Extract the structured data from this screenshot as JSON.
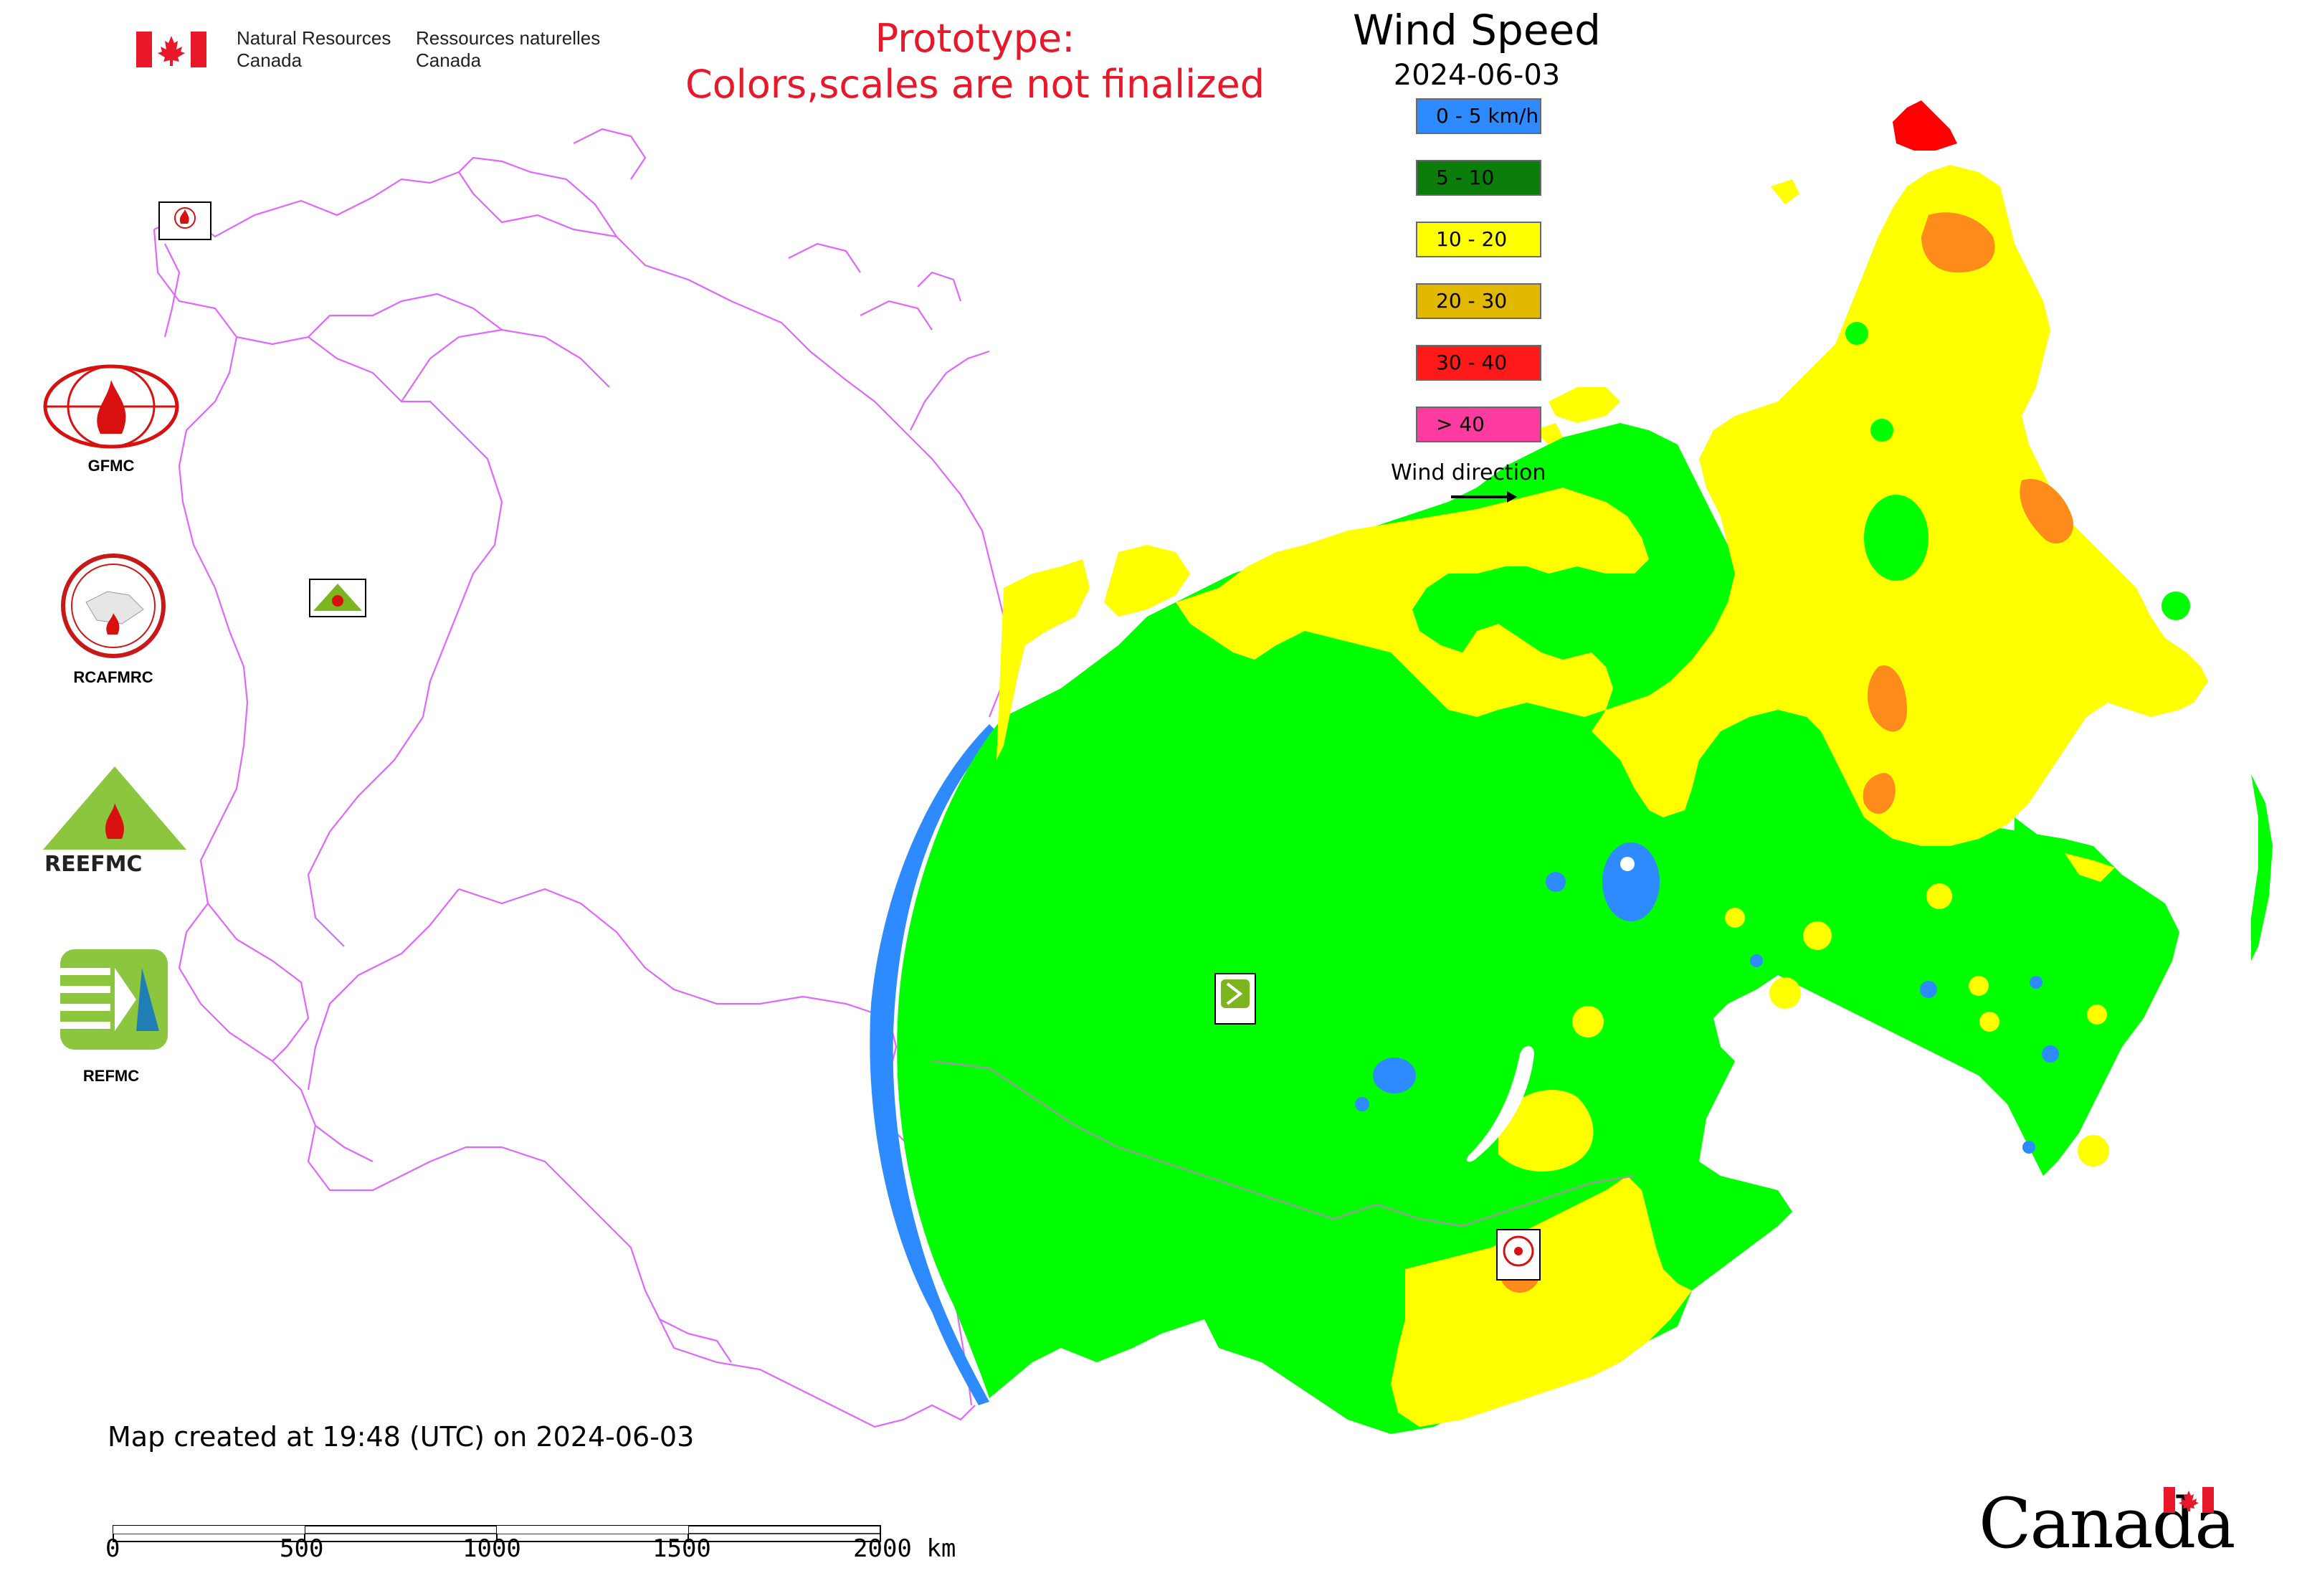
{
  "header": {
    "dept_en_line1": "Natural Resources",
    "dept_en_line2": "Canada",
    "dept_fr_line1": "Ressources naturelles",
    "dept_fr_line2": "Canada",
    "flag_icon": "canada-flag-icon"
  },
  "notice": {
    "line1": "Prototype:",
    "line2": "Colors,scales are not finalized",
    "color": "#e8172a"
  },
  "legend": {
    "title": "Wind Speed",
    "date": "2024-06-03",
    "classes": [
      {
        "label": "0 - 5 km/h",
        "color": "#2e8bff"
      },
      {
        "label": "5 - 10",
        "color": "#0a7d0a"
      },
      {
        "label": "10 - 20",
        "color": "#ffff00"
      },
      {
        "label": "20 - 30",
        "color": "#e0b800"
      },
      {
        "label": "30 - 40",
        "color": "#ff1a1a"
      },
      {
        "label": "> 40",
        "color": "#ff3aa0"
      }
    ],
    "wind_direction_label": "Wind direction"
  },
  "map_colors": {
    "green_zone": "#00ff00",
    "yellow_zone": "#ffff00",
    "orange_zone": "#ff8c1a",
    "blue_zone": "#2e8bff",
    "red_zone": "#ff0000",
    "boundary": "#e066ff",
    "internal_boundary": "#9a9a9a"
  },
  "logos": {
    "gfmc": "GFMC",
    "rcafmrc": "RCAFMRC",
    "reefmc": "REEFMC",
    "refmc": "REFMC"
  },
  "footer": {
    "created": "Map created at 19:48 (UTC) on 2024-06-03",
    "scale_labels": [
      "0",
      "500",
      "1000",
      "1500",
      "2000 km"
    ],
    "wordmark": "Canada"
  }
}
